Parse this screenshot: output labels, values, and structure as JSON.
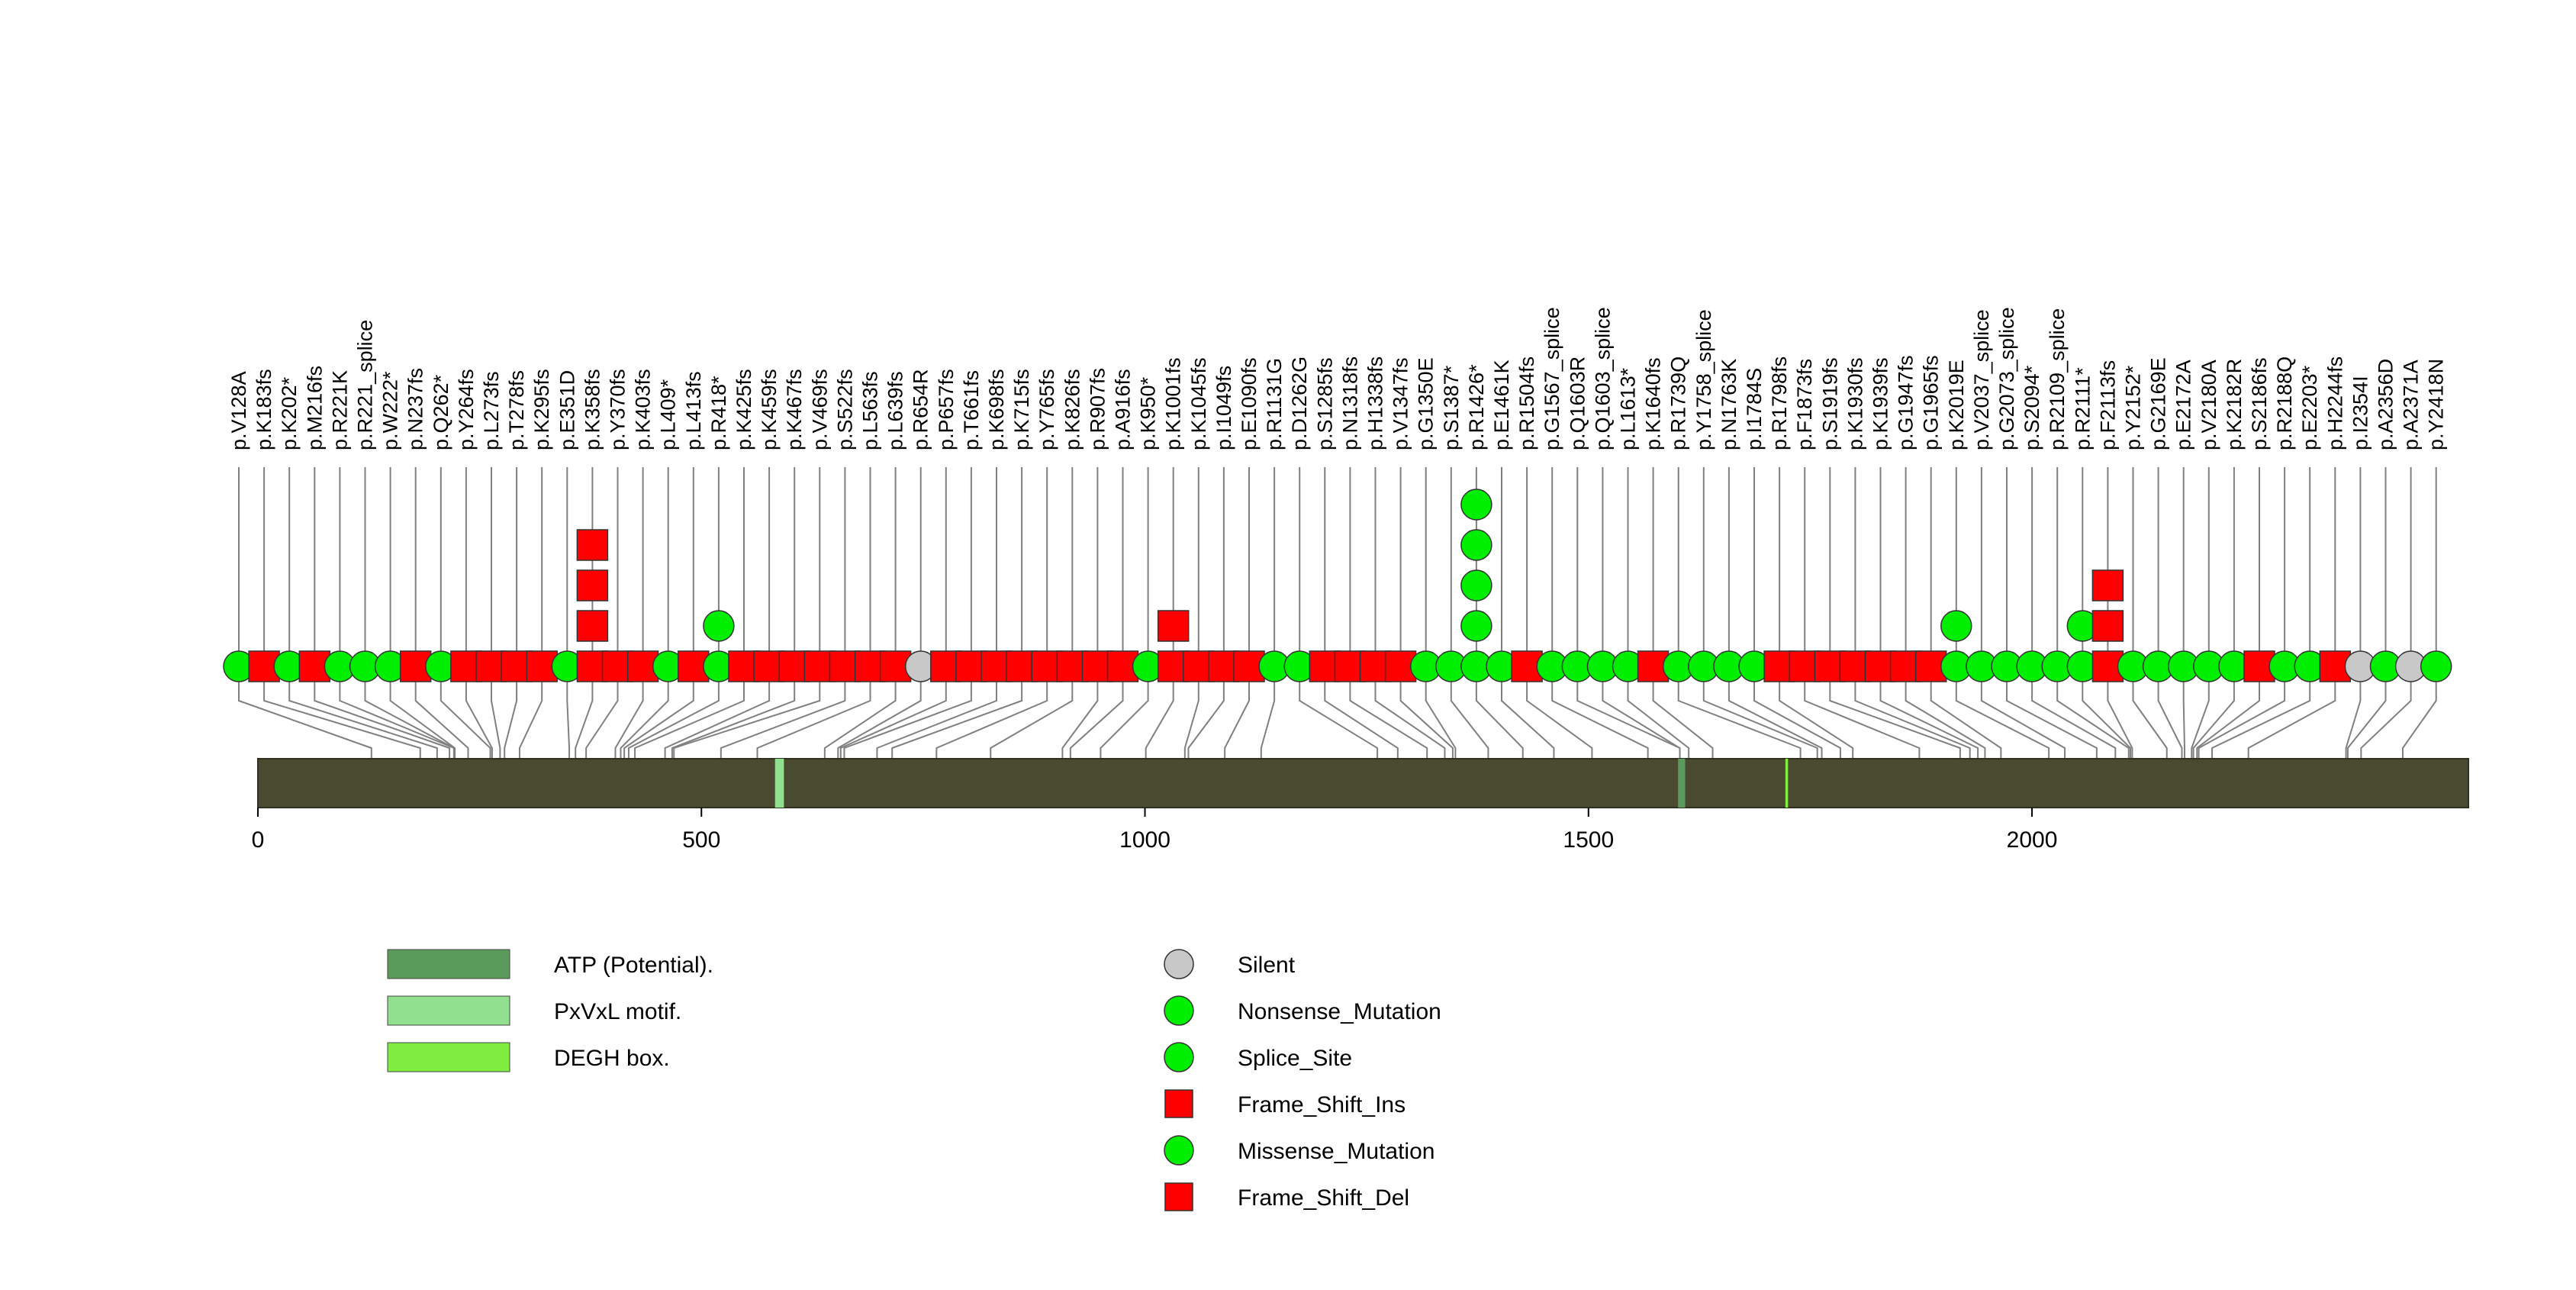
{
  "chart_data": {
    "type": "lollipop",
    "protein_length": 2492,
    "axis": {
      "min": 0,
      "max": 2492,
      "ticks": [
        0,
        500,
        1000,
        1500,
        2000
      ]
    },
    "colors": {
      "backbone": "#4a4a30",
      "stem": "#808080",
      "Silent": "#c8c8c8",
      "Nonsense_Mutation": "#00ee00",
      "Splice_Site": "#00ee00",
      "Frame_Shift_Ins": "#ff0000",
      "Missense_Mutation": "#00ee00",
      "Frame_Shift_Del": "#ff0000"
    },
    "domains": [
      {
        "name": "ATP (Potential).",
        "start": 1601,
        "end": 1609,
        "color": "#5a9a5a"
      },
      {
        "name": "PxVxL motif.",
        "start": 583,
        "end": 593,
        "color": "#90e090"
      },
      {
        "name": "DEGH box.",
        "start": 1722,
        "end": 1725,
        "color": "#80ee40"
      }
    ],
    "domain_legend": [
      {
        "label": "ATP (Potential).",
        "color": "#5a9a5a"
      },
      {
        "label": "PxVxL motif.",
        "color": "#90e090"
      },
      {
        "label": "DEGH box.",
        "color": "#80ee40"
      }
    ],
    "mutation_legend": [
      {
        "label": "Silent",
        "shape": "circle",
        "color": "#c8c8c8"
      },
      {
        "label": "Nonsense_Mutation",
        "shape": "circle",
        "color": "#00ee00"
      },
      {
        "label": "Splice_Site",
        "shape": "circle",
        "color": "#00ee00"
      },
      {
        "label": "Frame_Shift_Ins",
        "shape": "square",
        "color": "#ff0000"
      },
      {
        "label": "Missense_Mutation",
        "shape": "circle",
        "color": "#00ee00"
      },
      {
        "label": "Frame_Shift_Del",
        "shape": "square",
        "color": "#ff0000"
      }
    ],
    "mutations": [
      {
        "label": "p.V128A",
        "pos": 128,
        "items": [
          "Missense_Mutation"
        ]
      },
      {
        "label": "p.K183fs",
        "pos": 183,
        "items": [
          "Frame_Shift_Del"
        ]
      },
      {
        "label": "p.K202*",
        "pos": 202,
        "items": [
          "Nonsense_Mutation"
        ]
      },
      {
        "label": "p.M216fs",
        "pos": 216,
        "items": [
          "Frame_Shift_Del"
        ]
      },
      {
        "label": "p.R221K",
        "pos": 221,
        "items": [
          "Missense_Mutation"
        ]
      },
      {
        "label": "p.R221_splice",
        "pos": 221,
        "items": [
          "Splice_Site"
        ]
      },
      {
        "label": "p.W222*",
        "pos": 222,
        "items": [
          "Nonsense_Mutation"
        ]
      },
      {
        "label": "p.N237fs",
        "pos": 237,
        "items": [
          "Frame_Shift_Del"
        ]
      },
      {
        "label": "p.Q262*",
        "pos": 262,
        "items": [
          "Nonsense_Mutation"
        ]
      },
      {
        "label": "p.Y264fs",
        "pos": 264,
        "items": [
          "Frame_Shift_Del"
        ]
      },
      {
        "label": "p.L273fs",
        "pos": 273,
        "items": [
          "Frame_Shift_Del"
        ]
      },
      {
        "label": "p.T278fs",
        "pos": 278,
        "items": [
          "Frame_Shift_Del"
        ]
      },
      {
        "label": "p.K295fs",
        "pos": 295,
        "items": [
          "Frame_Shift_Del"
        ]
      },
      {
        "label": "p.E351D",
        "pos": 351,
        "items": [
          "Missense_Mutation"
        ]
      },
      {
        "label": "p.K358fs",
        "pos": 358,
        "items": [
          "Frame_Shift_Del",
          "Frame_Shift_Del",
          "Frame_Shift_Del",
          "Frame_Shift_Del"
        ]
      },
      {
        "label": "p.Y370fs",
        "pos": 370,
        "items": [
          "Frame_Shift_Del"
        ]
      },
      {
        "label": "p.K403fs",
        "pos": 403,
        "items": [
          "Frame_Shift_Del"
        ]
      },
      {
        "label": "p.L409*",
        "pos": 409,
        "items": [
          "Nonsense_Mutation"
        ]
      },
      {
        "label": "p.L413fs",
        "pos": 413,
        "items": [
          "Frame_Shift_Del"
        ]
      },
      {
        "label": "p.R418*",
        "pos": 418,
        "items": [
          "Nonsense_Mutation",
          "Nonsense_Mutation"
        ]
      },
      {
        "label": "p.K425fs",
        "pos": 425,
        "items": [
          "Frame_Shift_Del"
        ]
      },
      {
        "label": "p.K459fs",
        "pos": 459,
        "items": [
          "Frame_Shift_Del"
        ]
      },
      {
        "label": "p.K467fs",
        "pos": 467,
        "items": [
          "Frame_Shift_Del"
        ]
      },
      {
        "label": "p.V469fs",
        "pos": 469,
        "items": [
          "Frame_Shift_Del"
        ]
      },
      {
        "label": "p.S522fs",
        "pos": 522,
        "items": [
          "Frame_Shift_Del"
        ]
      },
      {
        "label": "p.L563fs",
        "pos": 563,
        "items": [
          "Frame_Shift_Del"
        ]
      },
      {
        "label": "p.L639fs",
        "pos": 639,
        "items": [
          "Frame_Shift_Del"
        ]
      },
      {
        "label": "p.R654R",
        "pos": 654,
        "items": [
          "Silent"
        ]
      },
      {
        "label": "p.P657fs",
        "pos": 657,
        "items": [
          "Frame_Shift_Del"
        ]
      },
      {
        "label": "p.T661fs",
        "pos": 661,
        "items": [
          "Frame_Shift_Del"
        ]
      },
      {
        "label": "p.K698fs",
        "pos": 698,
        "items": [
          "Frame_Shift_Del"
        ]
      },
      {
        "label": "p.K715fs",
        "pos": 715,
        "items": [
          "Frame_Shift_Del"
        ]
      },
      {
        "label": "p.Y765fs",
        "pos": 765,
        "items": [
          "Frame_Shift_Del"
        ]
      },
      {
        "label": "p.K826fs",
        "pos": 826,
        "items": [
          "Frame_Shift_Del"
        ]
      },
      {
        "label": "p.R907fs",
        "pos": 907,
        "items": [
          "Frame_Shift_Del"
        ]
      },
      {
        "label": "p.A916fs",
        "pos": 916,
        "items": [
          "Frame_Shift_Del"
        ]
      },
      {
        "label": "p.K950*",
        "pos": 950,
        "items": [
          "Nonsense_Mutation"
        ]
      },
      {
        "label": "p.K1001fs",
        "pos": 1001,
        "items": [
          "Frame_Shift_Del",
          "Frame_Shift_Del"
        ]
      },
      {
        "label": "p.K1045fs",
        "pos": 1045,
        "items": [
          "Frame_Shift_Del"
        ]
      },
      {
        "label": "p.I1049fs",
        "pos": 1049,
        "items": [
          "Frame_Shift_Del"
        ]
      },
      {
        "label": "p.E1090fs",
        "pos": 1090,
        "items": [
          "Frame_Shift_Del"
        ]
      },
      {
        "label": "p.R1131G",
        "pos": 1131,
        "items": [
          "Missense_Mutation"
        ]
      },
      {
        "label": "p.D1262G",
        "pos": 1262,
        "items": [
          "Missense_Mutation"
        ]
      },
      {
        "label": "p.S1285fs",
        "pos": 1285,
        "items": [
          "Frame_Shift_Del"
        ]
      },
      {
        "label": "p.N1318fs",
        "pos": 1318,
        "items": [
          "Frame_Shift_Del"
        ]
      },
      {
        "label": "p.H1338fs",
        "pos": 1338,
        "items": [
          "Frame_Shift_Del"
        ]
      },
      {
        "label": "p.V1347fs",
        "pos": 1347,
        "items": [
          "Frame_Shift_Del"
        ]
      },
      {
        "label": "p.G1350E",
        "pos": 1350,
        "items": [
          "Missense_Mutation"
        ]
      },
      {
        "label": "p.S1387*",
        "pos": 1387,
        "items": [
          "Nonsense_Mutation"
        ]
      },
      {
        "label": "p.R1426*",
        "pos": 1426,
        "items": [
          "Nonsense_Mutation",
          "Nonsense_Mutation",
          "Nonsense_Mutation",
          "Nonsense_Mutation",
          "Nonsense_Mutation"
        ]
      },
      {
        "label": "p.E1461K",
        "pos": 1461,
        "items": [
          "Missense_Mutation"
        ]
      },
      {
        "label": "p.R1504fs",
        "pos": 1504,
        "items": [
          "Frame_Shift_Del"
        ]
      },
      {
        "label": "p.G1567_splice",
        "pos": 1567,
        "items": [
          "Splice_Site"
        ]
      },
      {
        "label": "p.Q1603R",
        "pos": 1603,
        "items": [
          "Missense_Mutation"
        ]
      },
      {
        "label": "p.Q1603_splice",
        "pos": 1603,
        "items": [
          "Splice_Site"
        ]
      },
      {
        "label": "p.L1613*",
        "pos": 1613,
        "items": [
          "Nonsense_Mutation"
        ]
      },
      {
        "label": "p.K1640fs",
        "pos": 1640,
        "items": [
          "Frame_Shift_Del"
        ]
      },
      {
        "label": "p.R1739Q",
        "pos": 1739,
        "items": [
          "Missense_Mutation"
        ]
      },
      {
        "label": "p.Y1758_splice",
        "pos": 1758,
        "items": [
          "Splice_Site"
        ]
      },
      {
        "label": "p.N1763K",
        "pos": 1763,
        "items": [
          "Missense_Mutation"
        ]
      },
      {
        "label": "p.I1784S",
        "pos": 1784,
        "items": [
          "Missense_Mutation"
        ]
      },
      {
        "label": "p.R1798fs",
        "pos": 1798,
        "items": [
          "Frame_Shift_Del"
        ]
      },
      {
        "label": "p.F1873fs",
        "pos": 1873,
        "items": [
          "Frame_Shift_Del"
        ]
      },
      {
        "label": "p.S1919fs",
        "pos": 1919,
        "items": [
          "Frame_Shift_Del"
        ]
      },
      {
        "label": "p.K1930fs",
        "pos": 1930,
        "items": [
          "Frame_Shift_Del"
        ]
      },
      {
        "label": "p.K1939fs",
        "pos": 1939,
        "items": [
          "Frame_Shift_Del"
        ]
      },
      {
        "label": "p.G1947fs",
        "pos": 1947,
        "items": [
          "Frame_Shift_Del"
        ]
      },
      {
        "label": "p.G1965fs",
        "pos": 1965,
        "items": [
          "Frame_Shift_Del"
        ]
      },
      {
        "label": "p.K2019E",
        "pos": 2019,
        "items": [
          "Missense_Mutation",
          "Missense_Mutation"
        ]
      },
      {
        "label": "p.V2037_splice",
        "pos": 2037,
        "items": [
          "Splice_Site"
        ]
      },
      {
        "label": "p.G2073_splice",
        "pos": 2073,
        "items": [
          "Splice_Site"
        ]
      },
      {
        "label": "p.S2094*",
        "pos": 2094,
        "items": [
          "Nonsense_Mutation"
        ]
      },
      {
        "label": "p.R2109_splice",
        "pos": 2109,
        "items": [
          "Splice_Site"
        ]
      },
      {
        "label": "p.R2111*",
        "pos": 2111,
        "items": [
          "Nonsense_Mutation",
          "Nonsense_Mutation"
        ]
      },
      {
        "label": "p.F2113fs",
        "pos": 2113,
        "items": [
          "Frame_Shift_Del",
          "Frame_Shift_Del",
          "Frame_Shift_Del"
        ]
      },
      {
        "label": "p.Y2152*",
        "pos": 2152,
        "items": [
          "Nonsense_Mutation"
        ]
      },
      {
        "label": "p.G2169E",
        "pos": 2169,
        "items": [
          "Missense_Mutation"
        ]
      },
      {
        "label": "p.E2172A",
        "pos": 2172,
        "items": [
          "Missense_Mutation"
        ]
      },
      {
        "label": "p.V2180A",
        "pos": 2180,
        "items": [
          "Missense_Mutation"
        ]
      },
      {
        "label": "p.K2182R",
        "pos": 2182,
        "items": [
          "Missense_Mutation"
        ]
      },
      {
        "label": "p.S2186fs",
        "pos": 2186,
        "items": [
          "Frame_Shift_Del"
        ]
      },
      {
        "label": "p.R2188Q",
        "pos": 2188,
        "items": [
          "Missense_Mutation"
        ]
      },
      {
        "label": "p.E2203*",
        "pos": 2203,
        "items": [
          "Nonsense_Mutation"
        ]
      },
      {
        "label": "p.H2244fs",
        "pos": 2244,
        "items": [
          "Frame_Shift_Del"
        ]
      },
      {
        "label": "p.I2354I",
        "pos": 2354,
        "items": [
          "Silent"
        ]
      },
      {
        "label": "p.A2356D",
        "pos": 2356,
        "items": [
          "Missense_Mutation"
        ]
      },
      {
        "label": "p.A2371A",
        "pos": 2371,
        "items": [
          "Silent"
        ]
      },
      {
        "label": "p.Y2418N",
        "pos": 2418,
        "items": [
          "Missense_Mutation"
        ]
      }
    ]
  }
}
